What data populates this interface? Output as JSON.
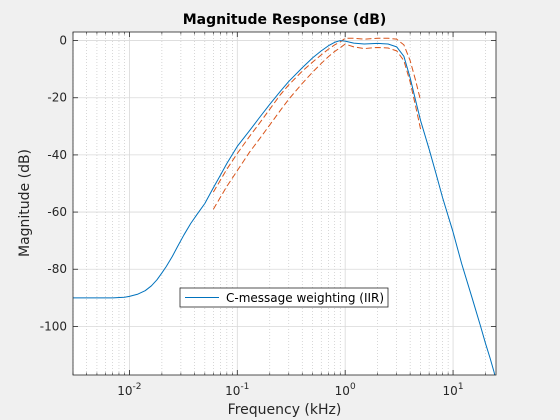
{
  "chart_data": {
    "type": "line",
    "title": "Magnitude Response (dB)",
    "xlabel": "Frequency (kHz)",
    "ylabel": "Magnitude (dB)",
    "x_scale": "log",
    "xlim": [
      0.003,
      25
    ],
    "ylim": [
      -117,
      3
    ],
    "x_ticks": [
      {
        "value": 0.01,
        "base": "10",
        "exp": "-2"
      },
      {
        "value": 0.1,
        "base": "10",
        "exp": "-1"
      },
      {
        "value": 1,
        "base": "10",
        "exp": "0"
      },
      {
        "value": 10,
        "base": "10",
        "exp": "1"
      }
    ],
    "y_ticks": [
      0,
      -20,
      -40,
      -60,
      -80,
      -100
    ],
    "grid": true,
    "minor_grid": true,
    "legend": {
      "entries": [
        "C-message weighting (IIR)"
      ],
      "placement": "lower-center"
    },
    "series": [
      {
        "name": "C-message weighting (IIR)",
        "color": "#0072bd",
        "x": [
          0.003,
          0.005,
          0.007,
          0.009,
          0.01,
          0.012,
          0.014,
          0.016,
          0.018,
          0.02,
          0.022,
          0.025,
          0.028,
          0.032,
          0.037,
          0.042,
          0.05,
          0.06,
          0.07,
          0.08,
          0.1,
          0.13,
          0.16,
          0.2,
          0.25,
          0.3,
          0.4,
          0.5,
          0.6,
          0.7,
          0.8,
          0.9,
          1.0,
          1.2,
          1.5,
          2.0,
          2.5,
          3.0,
          3.5,
          4.0,
          4.5,
          5.0,
          6.0,
          7.0,
          8.0,
          10.0,
          12.0,
          15.0,
          18.0,
          20.0,
          22.0,
          24.0,
          25.0
        ],
        "y": [
          -90,
          -90,
          -90,
          -89.8,
          -89.5,
          -88.7,
          -87.5,
          -85.8,
          -83.7,
          -81.3,
          -79,
          -75.5,
          -72,
          -68,
          -64,
          -61,
          -57,
          -51.5,
          -47,
          -43,
          -37,
          -31.5,
          -27,
          -22.3,
          -17.8,
          -14.3,
          -9.5,
          -6,
          -3.6,
          -1.8,
          -0.6,
          0,
          -0.2,
          -0.9,
          -1.2,
          -1,
          -1.2,
          -2.2,
          -5.5,
          -13,
          -21,
          -28,
          -38,
          -47,
          -55,
          -67,
          -78,
          -90,
          -100,
          -106,
          -111,
          -116,
          -119
        ]
      },
      {
        "name": "Upper mask limit",
        "color": "#d9541a",
        "style": "dashed",
        "x": [
          0.06,
          0.08,
          0.1,
          0.13,
          0.16,
          0.2,
          0.25,
          0.3,
          0.4,
          0.5,
          0.6,
          0.7,
          0.8,
          0.9,
          1.0,
          1.2,
          1.5,
          2.0,
          2.5,
          3.0,
          3.5,
          4.0,
          4.5,
          5.0
        ],
        "y": [
          -53,
          -45,
          -39.5,
          -33.5,
          -29,
          -24,
          -19,
          -15.5,
          -10.7,
          -7.5,
          -5,
          -3,
          -1.5,
          -0.5,
          0.8,
          0.8,
          0.5,
          0.8,
          0.8,
          0.5,
          -1.5,
          -7,
          -14,
          -21
        ]
      },
      {
        "name": "Lower mask limit",
        "color": "#d9541a",
        "style": "dashed",
        "x": [
          0.06,
          0.08,
          0.1,
          0.13,
          0.16,
          0.2,
          0.25,
          0.3,
          0.4,
          0.5,
          0.6,
          0.7,
          0.8,
          0.9,
          1.0,
          1.2,
          1.5,
          2.0,
          2.5,
          3.0,
          3.5,
          4.0,
          4.5,
          5.0
        ],
        "y": [
          -59,
          -51,
          -45.5,
          -39,
          -34.5,
          -29.5,
          -24.5,
          -20.5,
          -15,
          -11,
          -8,
          -5.6,
          -3.8,
          -2.5,
          -1.2,
          -2.2,
          -2.8,
          -2.4,
          -2.6,
          -3.6,
          -7,
          -14.5,
          -23,
          -31
        ]
      }
    ]
  }
}
